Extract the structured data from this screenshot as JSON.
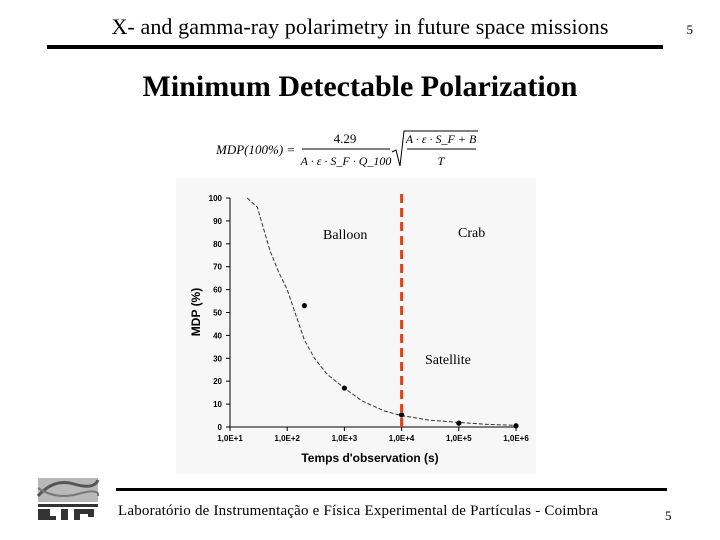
{
  "header": {
    "title": "X- and gamma-ray polarimetry in future space missions",
    "page_number": "5"
  },
  "slide": {
    "title": "Minimum Detectable Polarization"
  },
  "formula": {
    "lhs": "MDP(100%) =",
    "coefficient": "4.29",
    "denominator": "A · ε · S_F · Q_100",
    "sqrt_numerator": "A · ε · S_F + B",
    "sqrt_denominator": "T"
  },
  "chart_data": {
    "type": "line",
    "title": "",
    "xlabel": "Temps d'observation (s)",
    "ylabel": "MDP (%)",
    "x_scale": "log",
    "xlim": [
      10,
      1000000
    ],
    "ylim": [
      0,
      100
    ],
    "x_ticks": [
      "1,0E+1",
      "1,0E+2",
      "1,0E+3",
      "1,0E+4",
      "1,0E+5",
      "1,0E+6"
    ],
    "y_ticks": [
      0,
      10,
      20,
      30,
      40,
      50,
      60,
      70,
      80,
      90,
      100
    ],
    "grid": false,
    "curve": {
      "name": "",
      "x": [
        20,
        30,
        50,
        70,
        100,
        200,
        300,
        500,
        1000,
        2000,
        5000,
        10000,
        30000,
        100000,
        300000,
        1000000
      ],
      "y": [
        100,
        96,
        77,
        68,
        60,
        38,
        30,
        23,
        17,
        11.5,
        7,
        5,
        3,
        2,
        1.2,
        0.7
      ]
    },
    "points": {
      "x": [
        200,
        1000,
        10000,
        100000,
        1000000
      ],
      "y": [
        53,
        17,
        5.3,
        1.7,
        0.53
      ]
    },
    "divider_x": 10000,
    "divider_color": "#d9441c",
    "annotations": {
      "balloon": "Balloon",
      "crab": "Crab",
      "satellite": "Satellite"
    }
  },
  "footer": {
    "text": "Laboratório de Instrumentação e Física Experimental de Partículas - Coimbra",
    "page_number": "5"
  },
  "logo": {
    "text": "LIP"
  }
}
